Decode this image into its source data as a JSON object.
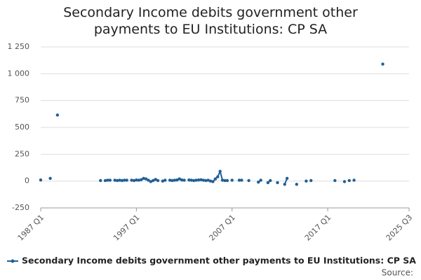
{
  "chart_data": {
    "type": "line",
    "title": "Secondary Income debits government other payments to EU Institutions: CP SA",
    "categories": [
      "1987 Q1",
      null,
      null,
      null,
      null,
      null,
      null,
      null,
      null,
      null,
      null,
      null,
      null,
      null,
      null,
      null,
      null,
      null,
      null,
      null,
      null,
      null,
      null,
      null,
      null,
      null,
      null,
      null,
      null,
      null,
      null,
      null,
      null,
      null,
      null,
      null,
      null,
      null,
      null,
      null,
      "1997 Q1",
      null,
      null,
      null,
      null,
      null,
      null,
      null,
      null,
      null,
      null,
      null,
      null,
      null,
      null,
      null,
      null,
      null,
      null,
      null,
      null,
      null,
      null,
      null,
      null,
      null,
      null,
      null,
      null,
      null,
      null,
      null,
      null,
      null,
      null,
      null,
      null,
      null,
      null,
      null,
      "2007 Q1",
      null,
      null,
      null,
      null,
      null,
      null,
      null,
      null,
      null,
      null,
      null,
      null,
      null,
      null,
      null,
      null,
      null,
      null,
      null,
      null,
      null,
      null,
      null,
      null,
      null,
      null,
      null,
      null,
      null,
      null,
      null,
      null,
      null,
      null,
      null,
      null,
      null,
      null,
      null,
      "2017 Q1",
      null,
      null,
      null,
      null,
      null,
      null,
      null,
      null,
      null,
      null,
      null,
      null,
      null,
      null,
      null,
      null,
      null,
      null,
      null,
      null,
      null,
      null,
      null,
      null,
      null,
      null,
      null,
      null,
      null,
      null,
      null,
      null,
      null,
      "2025 Q3"
    ],
    "series": [
      {
        "name": "Secondary Income debits government other payments to EU Institutions: CP SA",
        "color": "#206095",
        "values": [
          10,
          null,
          null,
          null,
          25,
          null,
          null,
          615,
          null,
          null,
          null,
          null,
          null,
          null,
          null,
          null,
          null,
          null,
          null,
          null,
          null,
          null,
          null,
          null,
          null,
          5,
          null,
          5,
          8,
          8,
          null,
          8,
          5,
          8,
          5,
          8,
          8,
          null,
          8,
          5,
          10,
          8,
          12,
          25,
          20,
          8,
          -5,
          5,
          15,
          5,
          null,
          0,
          8,
          null,
          8,
          5,
          8,
          10,
          20,
          10,
          8,
          null,
          10,
          8,
          5,
          8,
          10,
          12,
          8,
          5,
          8,
          0,
          -5,
          20,
          40,
          90,
          8,
          5,
          5,
          null,
          8,
          null,
          null,
          8,
          8,
          null,
          null,
          5,
          null,
          null,
          null,
          -10,
          8,
          null,
          null,
          -15,
          5,
          null,
          null,
          -15,
          null,
          null,
          -30,
          25,
          null,
          null,
          null,
          -30,
          null,
          null,
          null,
          0,
          null,
          5,
          null,
          null,
          null,
          null,
          null,
          null,
          null,
          null,
          null,
          5,
          null,
          null,
          null,
          -5,
          null,
          5,
          null,
          8,
          null,
          null,
          null,
          null,
          null,
          null,
          null,
          null,
          null,
          null,
          null,
          1090,
          null,
          null,
          null,
          null,
          null,
          null,
          null,
          null,
          null,
          null,
          null
        ]
      }
    ],
    "ylim": [
      -250,
      1250
    ],
    "yticks": [
      -250,
      0,
      250,
      500,
      750,
      {
        "value": 1000,
        "label": "1 000"
      },
      {
        "value": 1250,
        "label": "1 250"
      }
    ],
    "grid": true,
    "source": "Source:"
  }
}
